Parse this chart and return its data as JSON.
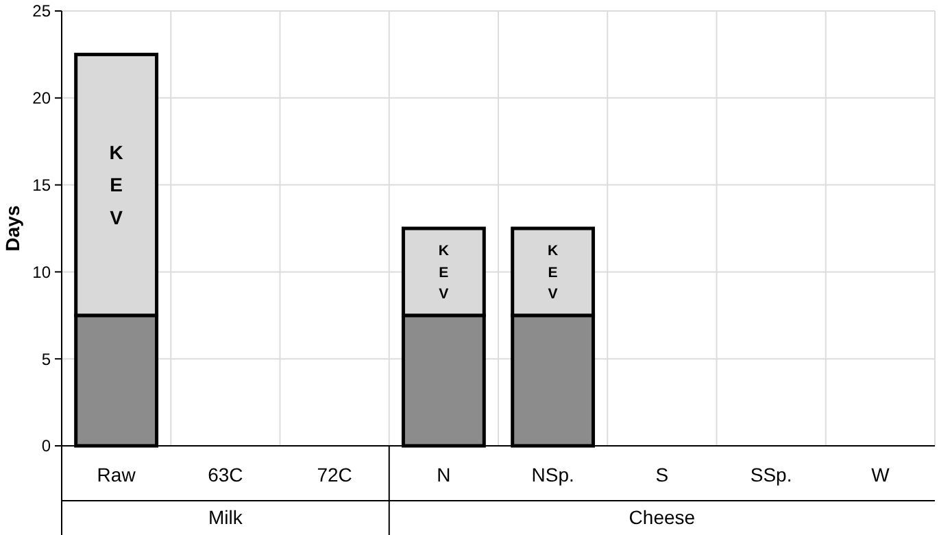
{
  "chart_data": {
    "type": "bar",
    "stacked": true,
    "ylabel": "Days",
    "categories": [
      "Raw",
      "63C",
      "72C",
      "N",
      "NSp.",
      "S",
      "SSp.",
      "W"
    ],
    "series": [
      {
        "color": "#8c8c8c",
        "values": [
          7.5,
          null,
          null,
          7.5,
          7.5,
          null,
          null,
          null
        ]
      },
      {
        "color": "#d9d9d9",
        "values": [
          15,
          null,
          null,
          5,
          5,
          null,
          null,
          null
        ]
      }
    ],
    "ylim": [
      0,
      25
    ],
    "yticks": [
      0,
      5,
      10,
      15,
      20,
      25
    ],
    "grid": true,
    "annotations": [
      "K E V",
      "K E V",
      "K E V",
      "Milk",
      "Cheese"
    ]
  }
}
